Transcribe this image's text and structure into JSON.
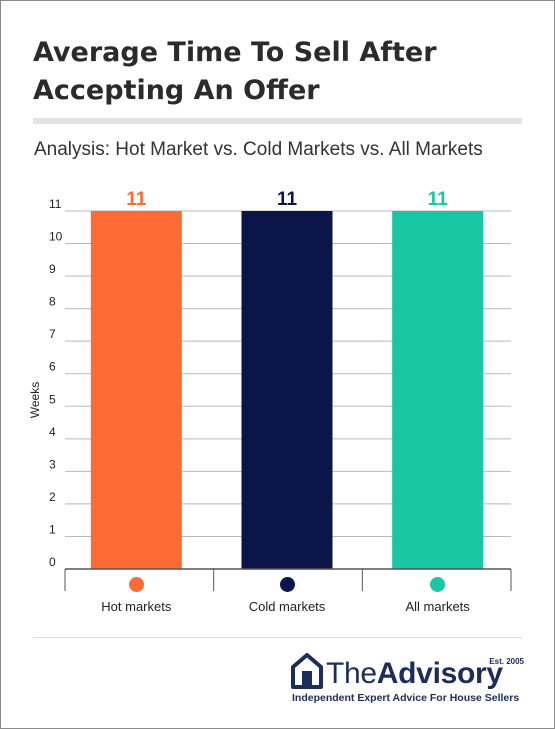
{
  "header": {
    "title": "Average Time To Sell After Accepting An Offer",
    "subtitle": "Analysis: Hot Market vs. Cold Markets vs. All Markets"
  },
  "chart_data": {
    "type": "bar",
    "categories": [
      "Hot markets",
      "Cold markets",
      "All markets"
    ],
    "values": [
      11,
      11,
      11
    ],
    "data_labels": [
      "11",
      "11",
      "11"
    ],
    "colors": [
      "#ff6b35",
      "#0b154a",
      "#19c7a5"
    ],
    "ylabel": "Weeks",
    "xlabel": "",
    "ylim": [
      0,
      11
    ],
    "yticks": [
      0,
      1,
      2,
      3,
      4,
      5,
      6,
      7,
      8,
      9,
      10,
      11
    ],
    "grid": true,
    "legend": "bottom"
  },
  "branding": {
    "name_light": "The",
    "name_bold": "Advisory",
    "established": "Est. 2005",
    "tagline": "Independent Expert Advice For House Sellers",
    "color": "#1d2d5b",
    "icon": "house-icon"
  }
}
